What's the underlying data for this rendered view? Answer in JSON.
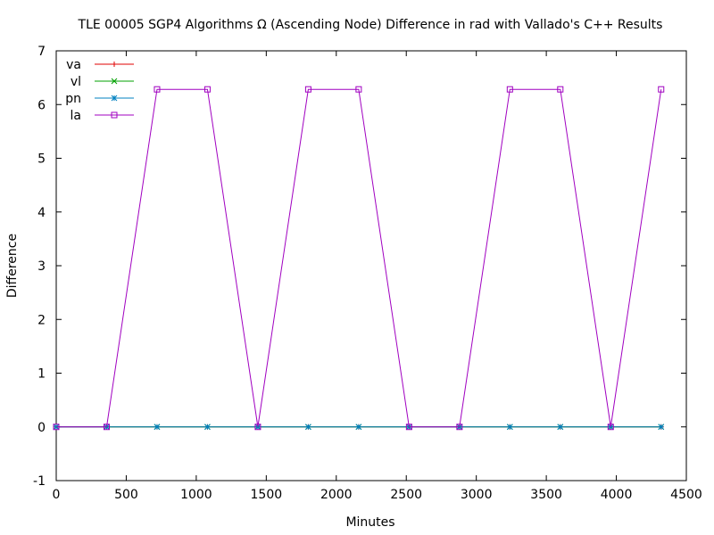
{
  "chart_data": {
    "type": "line",
    "title": "TLE 00005 SGP4 Algorithms Ω (Ascending Node) Difference in rad with Vallado's C++ Results",
    "xlabel": "Minutes",
    "ylabel": "Difference",
    "xlim": [
      0,
      4500
    ],
    "ylim": [
      -1,
      7
    ],
    "xticks": [
      0,
      500,
      1000,
      1500,
      2000,
      2500,
      3000,
      3500,
      4000,
      4500
    ],
    "yticks": [
      -1,
      0,
      1,
      2,
      3,
      4,
      5,
      6,
      7
    ],
    "grid": false,
    "legend_position": "top-left",
    "x": [
      0,
      360,
      720,
      1080,
      1440,
      1800,
      2160,
      2520,
      2880,
      3240,
      3600,
      3960,
      4320
    ],
    "series": [
      {
        "name": "va",
        "color": "#e00000",
        "marker": "plus",
        "values": [
          0,
          0,
          0,
          0,
          0,
          0,
          0,
          0,
          0,
          0,
          0,
          0,
          0
        ]
      },
      {
        "name": "vl",
        "color": "#00a000",
        "marker": "cross",
        "values": [
          0,
          0,
          0,
          0,
          0,
          0,
          0,
          0,
          0,
          0,
          0,
          0,
          0
        ]
      },
      {
        "name": "pn",
        "color": "#0080c0",
        "marker": "star",
        "values": [
          0,
          0,
          0,
          0,
          0,
          0,
          0,
          0,
          0,
          0,
          0,
          0,
          0
        ]
      },
      {
        "name": "la",
        "color": "#a000c0",
        "marker": "square",
        "values": [
          0,
          0,
          6.283,
          6.283,
          0,
          6.283,
          6.283,
          0,
          0,
          6.283,
          6.283,
          0,
          6.283
        ]
      }
    ]
  }
}
